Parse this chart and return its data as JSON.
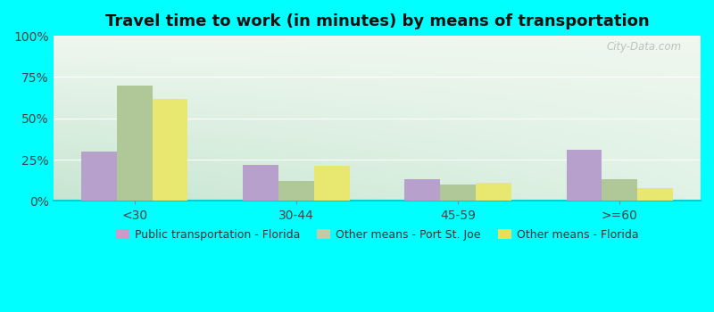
{
  "title": "Travel time to work (in minutes) by means of transportation",
  "categories": [
    "<30",
    "30-44",
    "45-59",
    ">=60"
  ],
  "series": {
    "Public transportation - Florida": [
      30,
      22,
      13,
      31
    ],
    "Other means - Port St. Joe": [
      70,
      12,
      10,
      13
    ],
    "Other means - Florida": [
      62,
      21,
      11,
      8
    ]
  },
  "colors": {
    "Public transportation - Florida": "#b8a0cc",
    "Other means - Port St. Joe": "#b0c898",
    "Other means - Florida": "#e8e870"
  },
  "legend_colors": {
    "Public transportation - Florida": "#cc99cc",
    "Other means - Port St. Joe": "#c8c8a8",
    "Other means - Florida": "#e8e050"
  },
  "ylim": [
    0,
    100
  ],
  "yticks": [
    0,
    25,
    50,
    75,
    100
  ],
  "yticklabels": [
    "0%",
    "25%",
    "50%",
    "75%",
    "100%"
  ],
  "background_color": "#00ffff",
  "watermark": "City-Data.com",
  "bar_width": 0.22,
  "title_fontsize": 13
}
